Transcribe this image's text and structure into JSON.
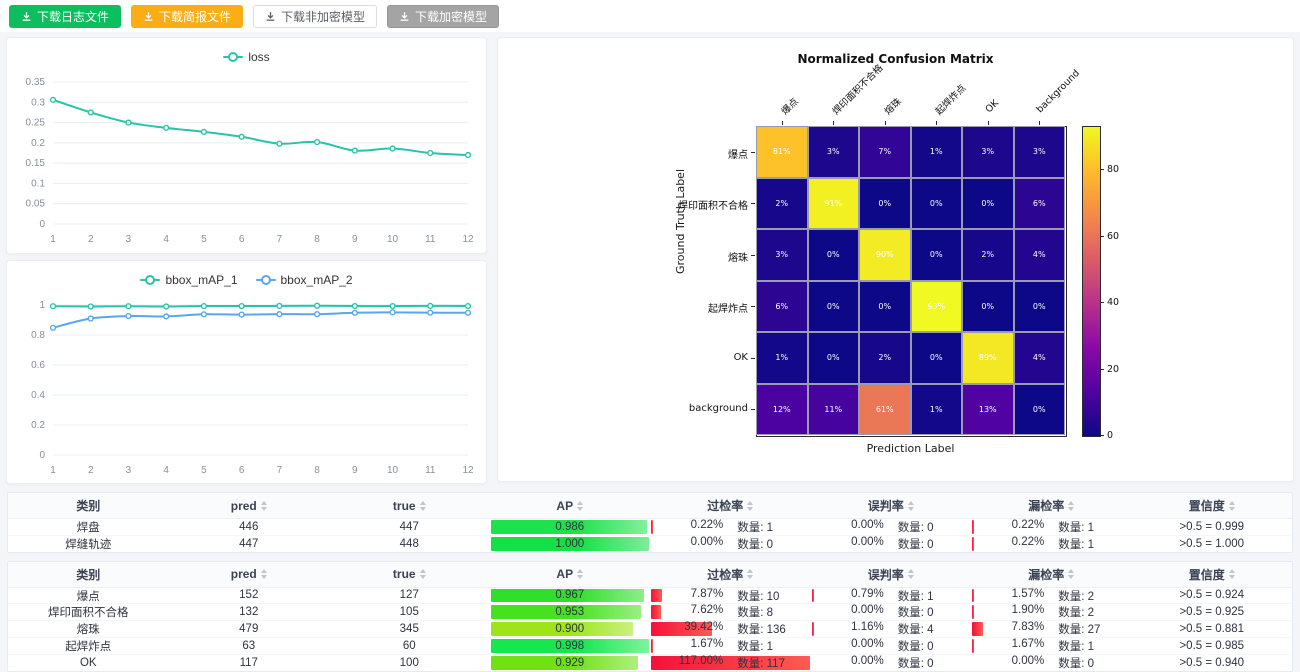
{
  "toolbar": {
    "buttons": [
      {
        "id": "download-log",
        "label": "下载日志文件",
        "variant": "green"
      },
      {
        "id": "download-report",
        "label": "下载简报文件",
        "variant": "orange"
      },
      {
        "id": "download-plain-model",
        "label": "下载非加密模型",
        "variant": "plain"
      },
      {
        "id": "download-encrypted-model",
        "label": "下载加密模型",
        "variant": "gray"
      }
    ]
  },
  "colors": {
    "teal": "#29c3a8",
    "blue": "#58a7ee",
    "rate_bar": "#f6103a",
    "grid_line": "#e7edf6",
    "axis_text": "#86909c"
  },
  "chart_data": [
    {
      "type": "line",
      "title": "",
      "legend": [
        "loss"
      ],
      "legend_position": "top",
      "grid": true,
      "x": [
        1,
        2,
        3,
        4,
        5,
        6,
        7,
        8,
        9,
        10,
        11,
        12
      ],
      "ylim": [
        0,
        0.35
      ],
      "yticks": [
        0,
        0.05,
        0.1,
        0.15,
        0.2,
        0.25,
        0.3,
        0.35
      ],
      "series": [
        {
          "name": "loss",
          "color": "#29c3a8",
          "values": [
            0.306,
            0.275,
            0.25,
            0.237,
            0.227,
            0.215,
            0.198,
            0.202,
            0.181,
            0.186,
            0.175,
            0.17
          ]
        }
      ]
    },
    {
      "type": "line",
      "title": "",
      "legend": [
        "bbox_mAP_1",
        "bbox_mAP_2"
      ],
      "legend_position": "top",
      "grid": true,
      "x": [
        1,
        2,
        3,
        4,
        5,
        6,
        7,
        8,
        9,
        10,
        11,
        12
      ],
      "ylim": [
        0,
        1
      ],
      "yticks": [
        0,
        0.2,
        0.4,
        0.6,
        0.8,
        1
      ],
      "series": [
        {
          "name": "bbox_mAP_1",
          "color": "#29c3a8",
          "values": [
            0.992,
            0.99,
            0.992,
            0.99,
            0.993,
            0.993,
            0.994,
            0.995,
            0.993,
            0.993,
            0.994,
            0.993
          ]
        },
        {
          "name": "bbox_mAP_2",
          "color": "#58a7ee",
          "values": [
            0.848,
            0.91,
            0.926,
            0.924,
            0.938,
            0.936,
            0.939,
            0.939,
            0.948,
            0.951,
            0.949,
            0.948
          ]
        }
      ]
    },
    {
      "type": "heatmap",
      "title": "Normalized Confusion Matrix",
      "xlabel": "Prediction Label",
      "ylabel": "Ground Truth Label",
      "categories": [
        "爆点",
        "焊印面积不合格",
        "熔珠",
        "起焊炸点",
        "OK",
        "background"
      ],
      "unit": "%",
      "vmax": 93,
      "colormap": "plasma",
      "colorbar_ticks": [
        0,
        20,
        40,
        60,
        80
      ],
      "matrix": [
        [
          81,
          3,
          7,
          1,
          3,
          3
        ],
        [
          2,
          91,
          0,
          0,
          0,
          6
        ],
        [
          3,
          0,
          90,
          0,
          2,
          4
        ],
        [
          6,
          0,
          0,
          93,
          0,
          0
        ],
        [
          1,
          0,
          2,
          0,
          89,
          4
        ],
        [
          12,
          11,
          61,
          1,
          13,
          0
        ]
      ]
    }
  ],
  "tables": {
    "columns": [
      {
        "label": "类别",
        "sortable": false
      },
      {
        "label": "pred",
        "sortable": true
      },
      {
        "label": "true",
        "sortable": true
      },
      {
        "label": "AP",
        "sortable": true
      },
      {
        "label": "过检率",
        "sortable": true
      },
      {
        "label": "误判率",
        "sortable": true
      },
      {
        "label": "漏检率",
        "sortable": true
      },
      {
        "label": "置信度",
        "sortable": true
      }
    ],
    "blocks": [
      {
        "rows": [
          {
            "category": "焊盘",
            "pred": "446",
            "true": "447",
            "ap": "0.986",
            "ap_width": 98.6,
            "ap_color": "#1ee24b",
            "over_pct": "0.22%",
            "over_count": "数量: 1",
            "over_width": 0.22,
            "mis_pct": "0.00%",
            "mis_count": "数量: 0",
            "mis_width": 0,
            "leak_pct": "0.22%",
            "leak_count": "数量: 1",
            "leak_width": 0.22,
            "conf": ">0.5 = 0.999"
          },
          {
            "category": "焊缝轨迹",
            "pred": "447",
            "true": "448",
            "ap": "1.000",
            "ap_width": 100,
            "ap_color": "#13e046",
            "over_pct": "0.00%",
            "over_count": "数量: 0",
            "over_width": 0,
            "mis_pct": "0.00%",
            "mis_count": "数量: 0",
            "mis_width": 0,
            "leak_pct": "0.22%",
            "leak_count": "数量: 1",
            "leak_width": 0.22,
            "conf": ">0.5 = 1.000"
          }
        ]
      },
      {
        "rows": [
          {
            "category": "爆点",
            "pred": "152",
            "true": "127",
            "ap": "0.967",
            "ap_width": 96.7,
            "ap_color": "#2fdf2b",
            "over_pct": "7.87%",
            "over_count": "数量: 10",
            "over_width": 7.87,
            "mis_pct": "0.79%",
            "mis_count": "数量: 1",
            "mis_width": 0.79,
            "leak_pct": "1.57%",
            "leak_count": "数量: 2",
            "leak_width": 1.57,
            "conf": ">0.5 = 0.924"
          },
          {
            "category": "焊印面积不合格",
            "pred": "132",
            "true": "105",
            "ap": "0.953",
            "ap_width": 95.3,
            "ap_color": "#47e120",
            "over_pct": "7.62%",
            "over_count": "数量: 8",
            "over_width": 7.62,
            "mis_pct": "0.00%",
            "mis_count": "数量: 0",
            "mis_width": 0,
            "leak_pct": "1.90%",
            "leak_count": "数量: 2",
            "leak_width": 1.9,
            "conf": ">0.5 = 0.925"
          },
          {
            "category": "熔珠",
            "pred": "479",
            "true": "345",
            "ap": "0.900",
            "ap_width": 90,
            "ap_color": "#9ee419",
            "over_pct": "39.42%",
            "over_count": "数量: 136",
            "over_width": 39.42,
            "mis_pct": "1.16%",
            "mis_count": "数量: 4",
            "mis_width": 1.16,
            "leak_pct": "7.83%",
            "leak_count": "数量: 27",
            "leak_width": 7.83,
            "conf": ">0.5 = 0.881"
          },
          {
            "category": "起焊炸点",
            "pred": "63",
            "true": "60",
            "ap": "0.998",
            "ap_width": 99.8,
            "ap_color": "#15e74e",
            "over_pct": "1.67%",
            "over_count": "数量: 1",
            "over_width": 1.67,
            "mis_pct": "0.00%",
            "mis_count": "数量: 0",
            "mis_width": 0,
            "leak_pct": "1.67%",
            "leak_count": "数量: 1",
            "leak_width": 1.67,
            "conf": ">0.5 = 0.985"
          },
          {
            "category": "OK",
            "pred": "117",
            "true": "100",
            "ap": "0.929",
            "ap_width": 92.9,
            "ap_color": "#6fe215",
            "over_pct": "117.00%",
            "over_count": "数量: 117",
            "over_width": 100,
            "mis_pct": "0.00%",
            "mis_count": "数量: 0",
            "mis_width": 0,
            "leak_pct": "0.00%",
            "leak_count": "数量: 0",
            "leak_width": 0,
            "conf": ">0.5 = 0.940"
          }
        ]
      }
    ]
  }
}
